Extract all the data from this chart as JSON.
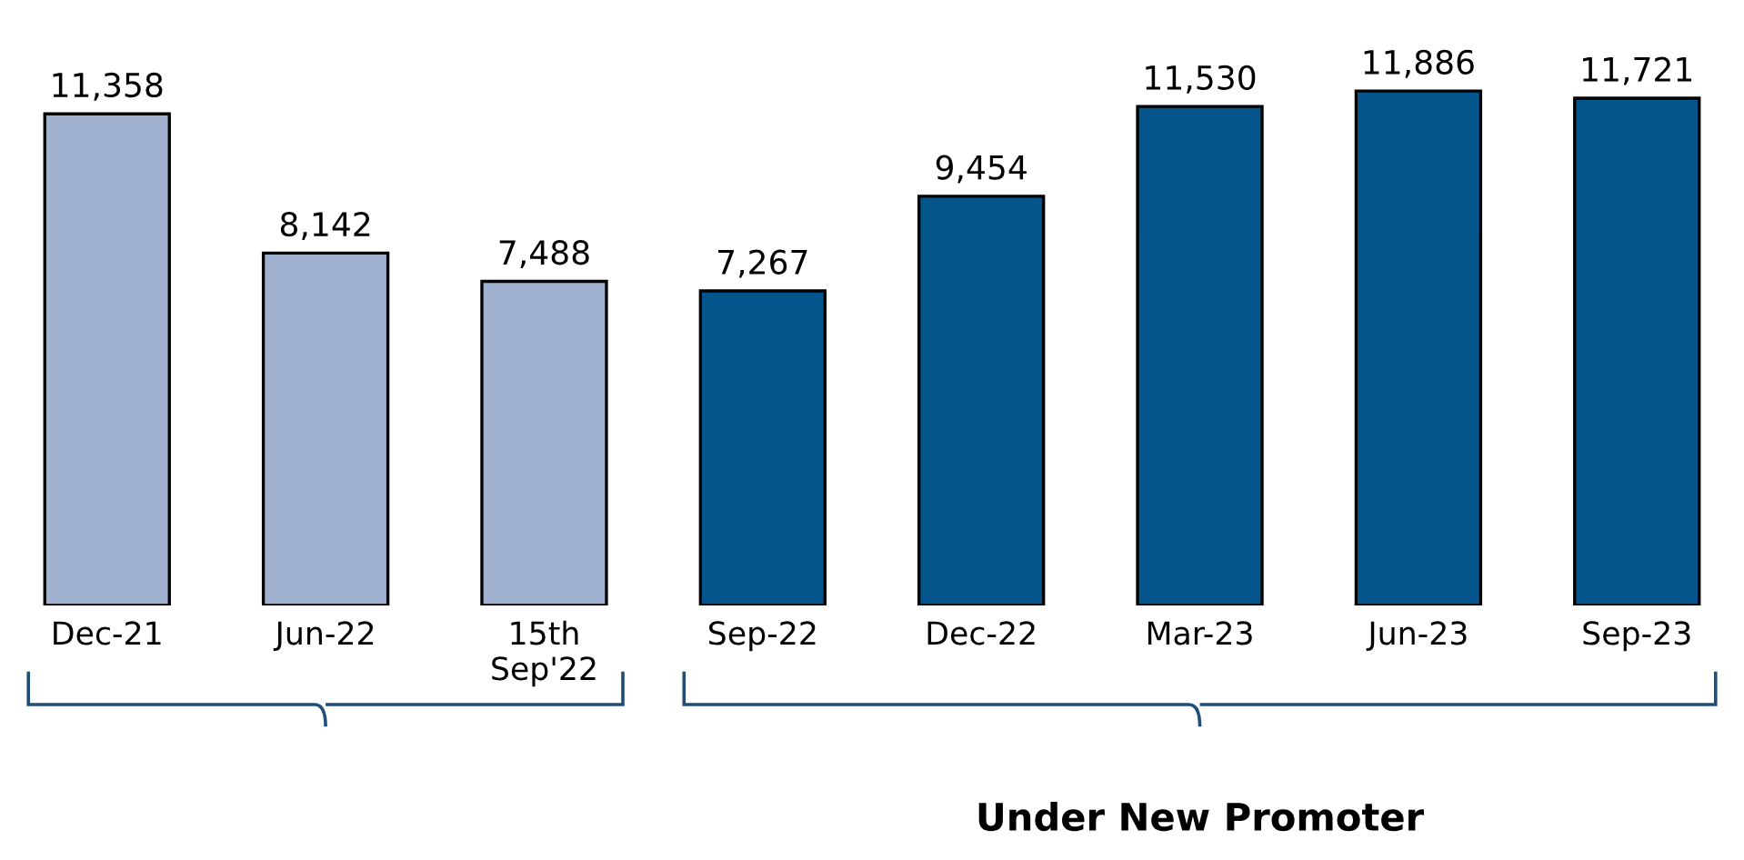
{
  "chart_data": {
    "type": "bar",
    "categories": [
      "Dec-21",
      "Jun-22",
      "15th\nSep'22",
      "Sep-22",
      "Dec-22",
      "Mar-23",
      "Jun-23",
      "Sep-23"
    ],
    "values": [
      11358,
      8142,
      7488,
      7267,
      9454,
      11530,
      11886,
      11721
    ],
    "colors": [
      "#9fb1cf",
      "#9fb1cf",
      "#9fb1cf",
      "#03558c",
      "#03558c",
      "#03558c",
      "#03558c",
      "#03558c"
    ],
    "value_labels": [
      "11,358",
      "8,142",
      "7,488",
      "7,267",
      "9,454",
      "11,530",
      "11,886",
      "11,721"
    ],
    "annotations": [
      "Under New Promoter"
    ],
    "grid": false,
    "legend": false
  }
}
